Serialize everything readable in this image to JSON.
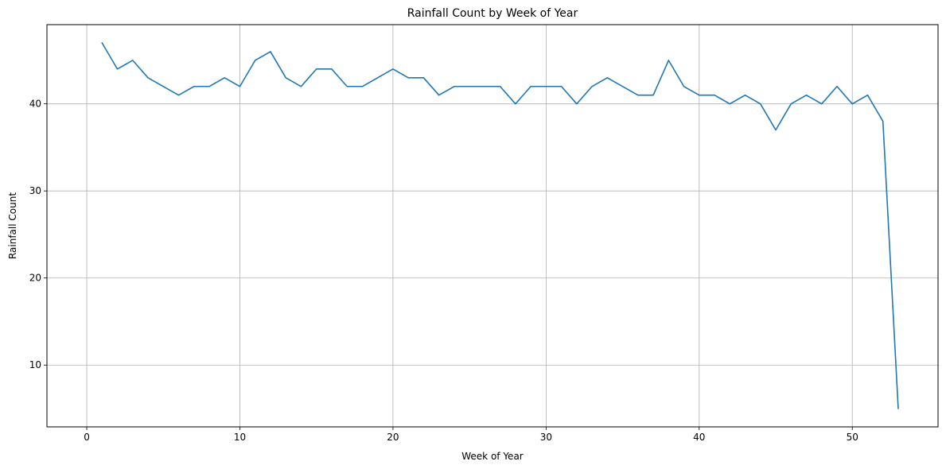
{
  "chart_data": {
    "type": "line",
    "title": "Rainfall Count by Week of Year",
    "xlabel": "Week of Year",
    "ylabel": "Rainfall Count",
    "xlim": [
      -2.6,
      55.6
    ],
    "ylim": [
      2.9,
      49.1
    ],
    "xticks": [
      0,
      10,
      20,
      30,
      40,
      50
    ],
    "yticks": [
      10,
      20,
      30,
      40
    ],
    "grid": true,
    "series": [
      {
        "color": "#1f77b4",
        "x": [
          1,
          2,
          3,
          4,
          5,
          6,
          7,
          8,
          9,
          10,
          11,
          12,
          13,
          14,
          15,
          16,
          17,
          18,
          19,
          20,
          21,
          22,
          23,
          24,
          25,
          26,
          27,
          28,
          29,
          30,
          31,
          32,
          33,
          34,
          35,
          36,
          37,
          38,
          39,
          40,
          41,
          42,
          43,
          44,
          45,
          46,
          47,
          48,
          49,
          50,
          51,
          52,
          53
        ],
        "y": [
          47,
          44,
          45,
          43,
          42,
          41,
          42,
          42,
          43,
          42,
          45,
          46,
          43,
          42,
          44,
          44,
          42,
          42,
          43,
          44,
          43,
          43,
          41,
          42,
          42,
          42,
          42,
          40,
          42,
          42,
          42,
          40,
          42,
          43,
          42,
          41,
          41,
          45,
          42,
          41,
          41,
          40,
          41,
          40,
          37,
          40,
          41,
          40,
          42,
          40,
          41,
          38,
          5
        ]
      }
    ]
  }
}
